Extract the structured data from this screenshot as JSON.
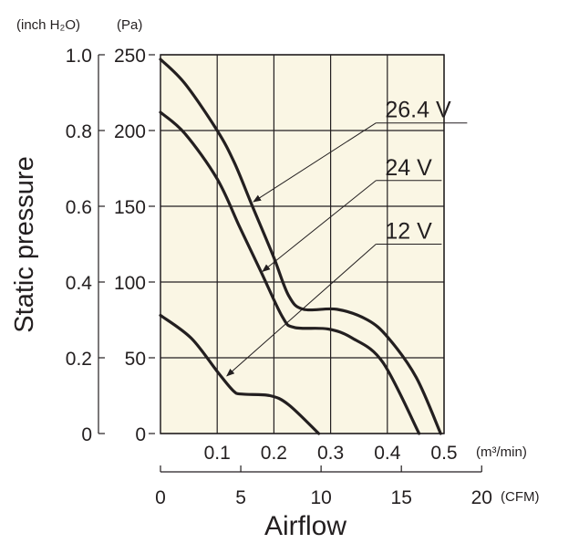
{
  "chart_data": {
    "type": "line",
    "ylabel": "Static pressure",
    "xlabel": "Airflow",
    "y_units_left": "(inch H₂O)",
    "y_units_right": "(Pa)",
    "x_units": "(m³/min)",
    "x2_units": "(CFM)",
    "xlim": [
      0,
      0.5
    ],
    "ylim": [
      0,
      250
    ],
    "x_ticks": [
      "0.1",
      "0.2",
      "0.3",
      "0.4",
      "0.5"
    ],
    "x_tick_values": [
      0.1,
      0.2,
      0.3,
      0.4,
      0.5
    ],
    "y_ticks": [
      "0",
      "50",
      "100",
      "150",
      "200",
      "250"
    ],
    "y_tick_values": [
      0,
      50,
      100,
      150,
      200,
      250
    ],
    "y2_ticks": [
      "0",
      "0.2",
      "0.4",
      "0.6",
      "0.8",
      "1.0"
    ],
    "y2_tick_values": [
      0,
      0.2,
      0.4,
      0.6,
      0.8,
      1.0
    ],
    "x2_ticks": [
      "0",
      "5",
      "10",
      "15",
      "20"
    ],
    "x2_tick_values": [
      0,
      5,
      10,
      15,
      20
    ],
    "grid": true,
    "background": "#faf6e4",
    "line_color": "#231f20",
    "series": [
      {
        "name": "26.4 V",
        "x": [
          0,
          0.043,
          0.1,
          0.13,
          0.161,
          0.199,
          0.226,
          0.252,
          0.311,
          0.365,
          0.402,
          0.451,
          0.494
        ],
        "y": [
          247,
          231,
          200,
          179,
          151,
          117,
          91,
          82,
          82,
          75,
          63,
          37,
          0
        ],
        "label_at": [
          0.38,
          205
        ],
        "arrow_to": [
          0.164,
          153
        ]
      },
      {
        "name": "24 V",
        "x": [
          0,
          0.043,
          0.1,
          0.14,
          0.177,
          0.215,
          0.236,
          0.295,
          0.338,
          0.392,
          0.456
        ],
        "y": [
          212,
          198,
          168,
          136,
          107,
          77,
          70,
          69,
          63,
          47,
          0
        ],
        "label_at": [
          0.38,
          167
        ],
        "arrow_to": [
          0.18,
          107
        ]
      },
      {
        "name": "12 V",
        "x": [
          0,
          0.054,
          0.1,
          0.129,
          0.145,
          0.193,
          0.226,
          0.279
        ],
        "y": [
          78,
          63,
          41,
          28,
          26,
          25,
          19,
          0
        ],
        "label_at": [
          0.38,
          125
        ],
        "arrow_to": [
          0.117,
          38
        ]
      }
    ]
  }
}
